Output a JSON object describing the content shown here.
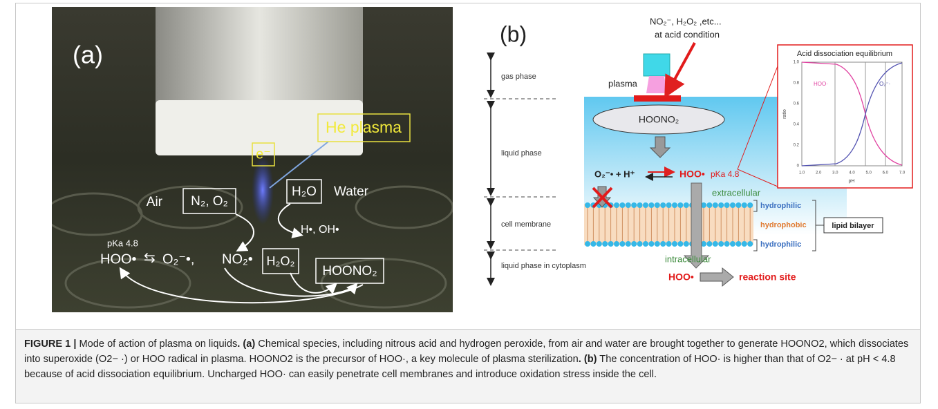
{
  "panel_a": {
    "label": "(a)",
    "he_plasma": "He plasma",
    "electron": "e⁻",
    "air": "Air",
    "air_species": "N₂, O₂",
    "water_species": "H₂O",
    "water": "Water",
    "radicals": "H•, OH•",
    "pka": "pKa 4.8",
    "hoo": "HOO•",
    "equilibrium": "⇆",
    "superoxide": "O₂⁻•,",
    "no2": "NO₂•",
    "h2o2": "H₂O₂",
    "hoono2": "HOONO₂"
  },
  "panel_b": {
    "label": "(b)",
    "species": "NO₂⁻, H₂O₂ ,etc...",
    "condition": "at acid condition",
    "plasma": "plasma",
    "hoono2": "HOONO₂",
    "phases": [
      "gas phase",
      "liquid phase",
      "cell membrane",
      "liquid phase in cytoplasm"
    ],
    "reaction_left": "O₂⁻• + H⁺",
    "reaction_right": "HOO•",
    "pka": "pKa 4.8",
    "extracellular": "extracellular",
    "hydrophilic_top": "hydrophilic",
    "hydrophobic": "hydrophobic",
    "hydrophilic_bottom": "hydrophilic",
    "lipid_bilayer": "lipid bilayer",
    "intracellular": "intracellular",
    "product": "HOO•",
    "reaction_site": "reaction site",
    "inset": {
      "title": "Acid dissociation equilibrium",
      "x_label": "pH",
      "y_label": "ratio",
      "curve_hoo": "HOO·",
      "curve_o2": "O₂⁻·",
      "xticks": [
        "1.0",
        "2.0",
        "3.0",
        "4.0",
        "5.0",
        "6.0",
        "7.0"
      ],
      "yticks": [
        "0",
        "0.2",
        "0.4",
        "0.6",
        "0.8",
        "1.0"
      ]
    }
  },
  "caption": [
    {
      "text": "FIGURE 1 |",
      "bold": true
    },
    {
      "text": " Mode of action of plasma on liquids",
      "bold": false
    },
    {
      "text": ". (a)",
      "bold": true
    },
    {
      "text": " Chemical species, including nitrous acid and hydrogen peroxide, from air and water are brought together to generate HOONO2, which dissociates into superoxide (O2− ·) or HOO radical in plasma. HOONO2 is the precursor of HOO·, a key molecule of plasma sterilization",
      "bold": false
    },
    {
      "text": ". (b)",
      "bold": true
    },
    {
      "text": " The concentration of HOO· is higher than that of O2− · at pH < 4.8 because of acid dissociation equilibrium. Uncharged HOO· can easily penetrate cell membranes and introduce oxidation stress inside the cell.",
      "bold": false
    }
  ]
}
